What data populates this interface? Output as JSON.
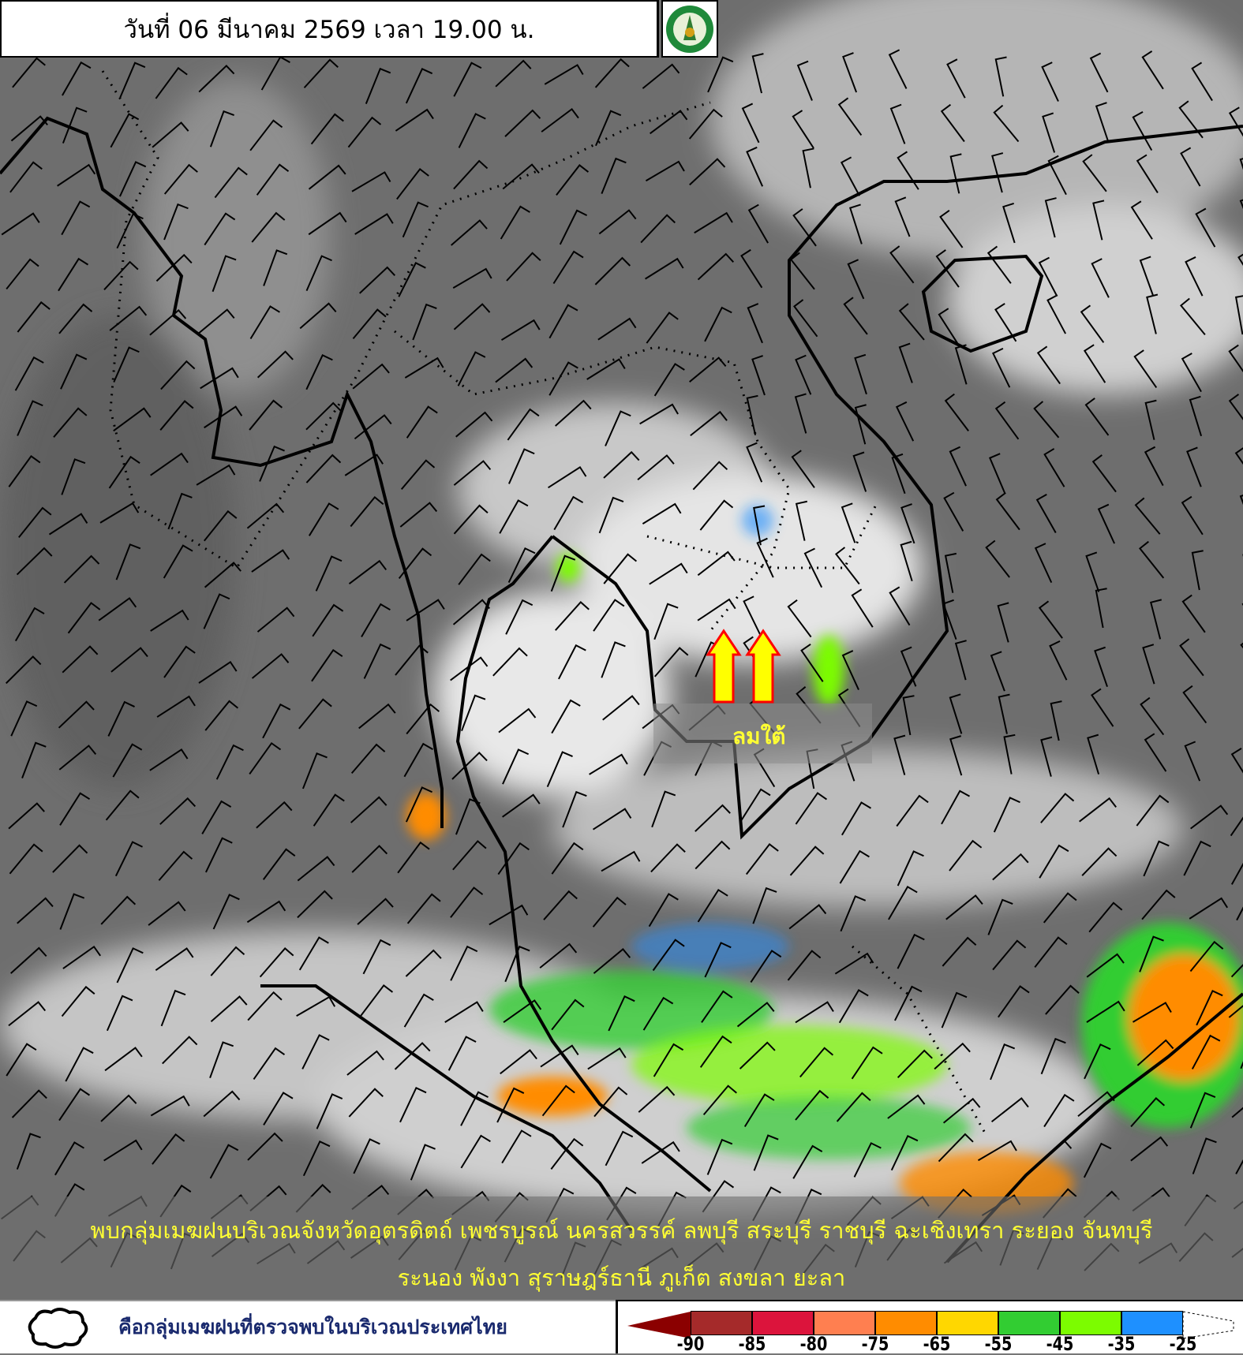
{
  "header": {
    "title": "วันที่ 06 มีนาคม 2569 เวลา 19.00 น."
  },
  "logo": {
    "name": "tmd-logo-icon",
    "text": "กรมอุตุนิยมวิทยา"
  },
  "annotation": {
    "wind_label": "ลมใต้",
    "arrow_color": "#ffff00",
    "arrow_outline": "#ff0000"
  },
  "notice": {
    "line1": "พบกลุ่มเมฆฝนบริเวณจังหวัดอุตรดิตถ์ เพชรบูรณ์ นครสวรรค์ ลพบุรี สระบุรี ราชบุรี ฉะเชิงเทรา ระยอง จันทบุรี",
    "line2": "ระนอง พังงา สุราษฎร์ธานี ภูเก็ต สงขลา ยะลา"
  },
  "legend": {
    "cloud_description": "คือกลุ่มเมฆฝนที่ตรวจพบในบริเวณประเทศไทย",
    "ticks": [
      "-90",
      "-85",
      "-80",
      "-75",
      "-65",
      "-55",
      "-45",
      "-35",
      "-25"
    ],
    "colors": [
      "#8b0000",
      "#a52a2a",
      "#dc143c",
      "#ff7f50",
      "#ff8c00",
      "#ffd700",
      "#32cd32",
      "#7cfc00",
      "#1e90ff",
      "#ffffff"
    ]
  }
}
